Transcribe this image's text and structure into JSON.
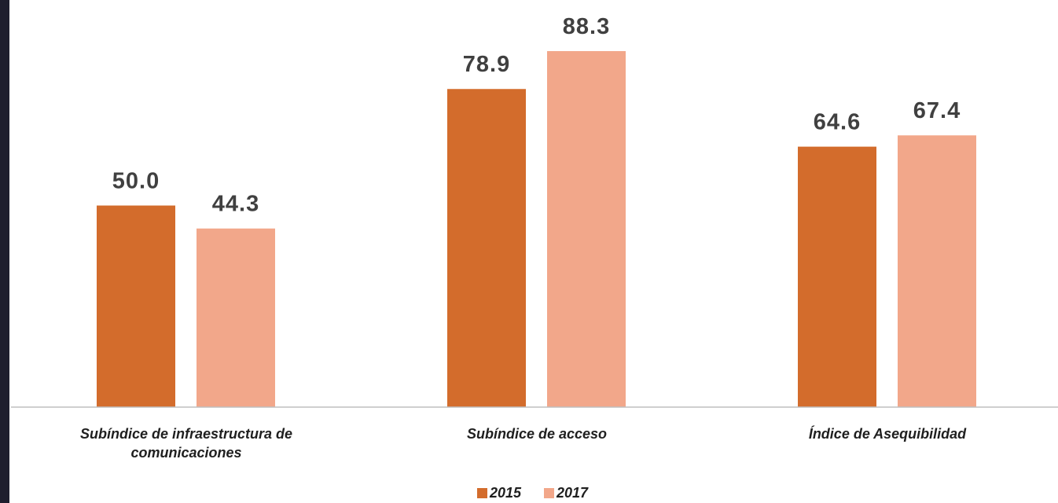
{
  "chart_data": {
    "type": "bar",
    "categories": [
      "Subíndice de  infraestructura de comunicaciones",
      "Subíndice de acceso",
      "Índice de Asequibilidad"
    ],
    "series": [
      {
        "name": "2015",
        "color": "#d36c2c",
        "values": [
          50.0,
          78.9,
          64.6
        ],
        "value_labels": [
          "50.0",
          "78.9",
          "64.6"
        ]
      },
      {
        "name": "2017",
        "color": "#f2a78a",
        "values": [
          44.3,
          88.3,
          67.4
        ],
        "value_labels": [
          "44.3",
          "88.3",
          "67.4"
        ]
      }
    ],
    "ylim": [
      0,
      100
    ],
    "grid": false,
    "legend": "bottom"
  }
}
